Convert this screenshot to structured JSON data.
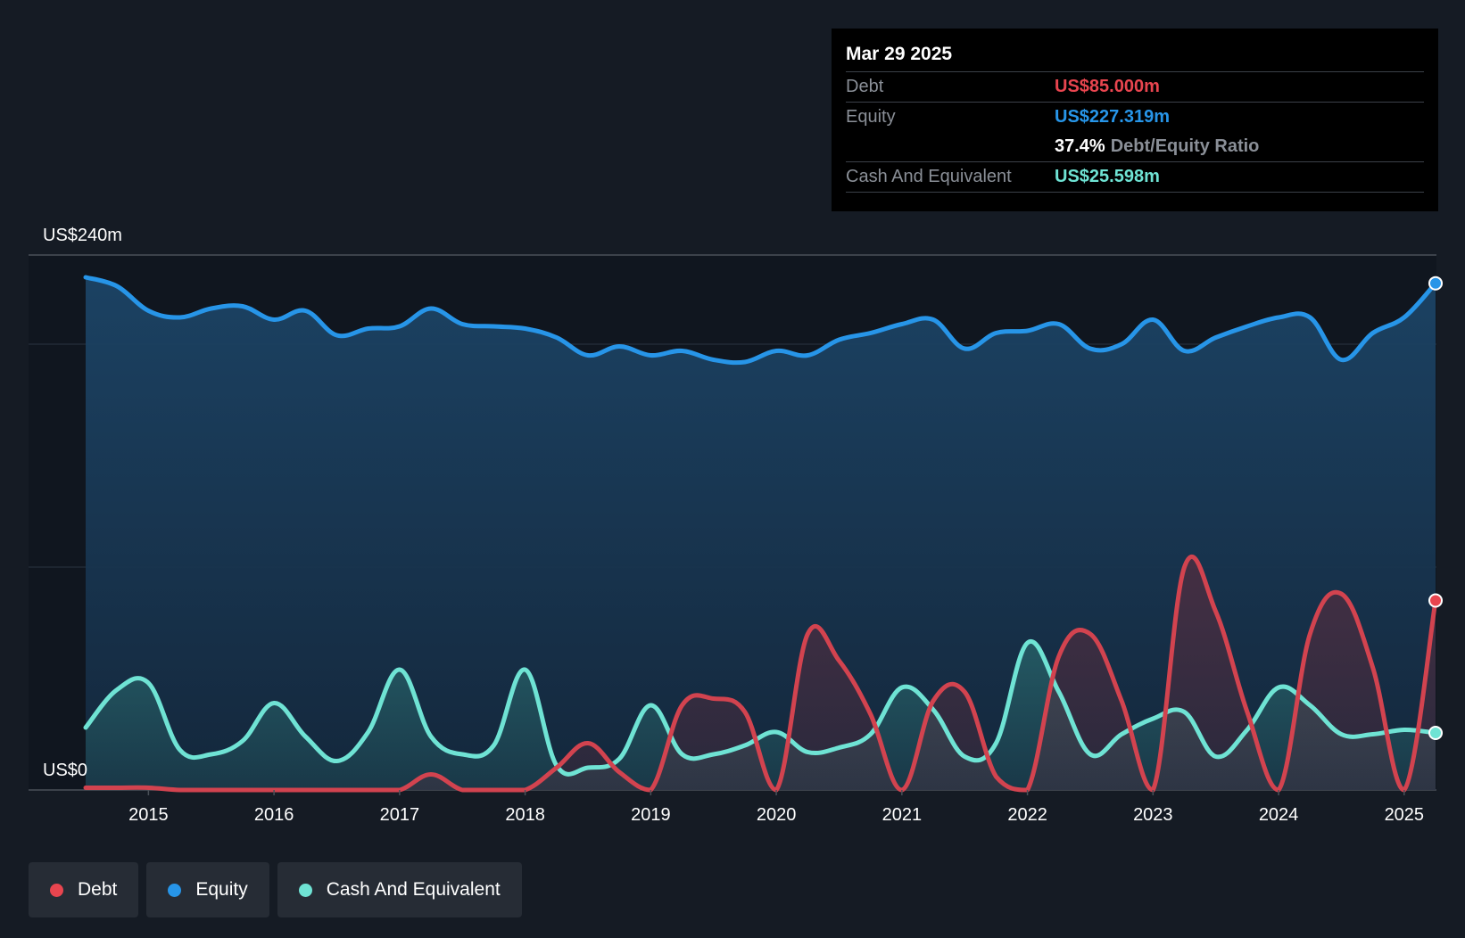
{
  "tooltip": {
    "date": "Mar 29 2025",
    "debt_label": "Debt",
    "debt_value": "US$85.000m",
    "equity_label": "Equity",
    "equity_value": "US$227.319m",
    "ratio_value": "37.4%",
    "ratio_label": "Debt/Equity Ratio",
    "cash_label": "Cash And Equivalent",
    "cash_value": "US$25.598m"
  },
  "legend": [
    {
      "label": "Debt",
      "color": "#e8454f"
    },
    {
      "label": "Equity",
      "color": "#2795e8"
    },
    {
      "label": "Cash And Equivalent",
      "color": "#6fe3d4"
    }
  ],
  "chart_data": {
    "type": "line",
    "ylim": [
      0,
      240
    ],
    "xlim": [
      2014.5,
      2025.25
    ],
    "y_tick_labels": [
      {
        "value": 240,
        "label": "US$240m"
      },
      {
        "value": 0,
        "label": "US$0"
      }
    ],
    "gridlines": [
      240,
      200,
      100,
      0
    ],
    "x_ticks": [
      2015,
      2016,
      2017,
      2018,
      2019,
      2020,
      2021,
      2022,
      2023,
      2024,
      2025
    ],
    "x_tick_labels": [
      "2015",
      "2016",
      "2017",
      "2018",
      "2019",
      "2020",
      "2021",
      "2022",
      "2023",
      "2024",
      "2025"
    ],
    "series": [
      {
        "name": "Equity",
        "color": "#2795e8",
        "points": [
          [
            2014.5,
            230
          ],
          [
            2014.75,
            226
          ],
          [
            2015,
            215
          ],
          [
            2015.25,
            212
          ],
          [
            2015.5,
            216
          ],
          [
            2015.75,
            217
          ],
          [
            2016,
            211
          ],
          [
            2016.25,
            215
          ],
          [
            2016.5,
            204
          ],
          [
            2016.75,
            207
          ],
          [
            2017,
            208
          ],
          [
            2017.25,
            216
          ],
          [
            2017.5,
            209
          ],
          [
            2017.75,
            208
          ],
          [
            2018,
            207
          ],
          [
            2018.25,
            203
          ],
          [
            2018.5,
            195
          ],
          [
            2018.75,
            199
          ],
          [
            2019,
            195
          ],
          [
            2019.25,
            197
          ],
          [
            2019.5,
            193
          ],
          [
            2019.75,
            192
          ],
          [
            2020,
            197
          ],
          [
            2020.25,
            195
          ],
          [
            2020.5,
            202
          ],
          [
            2020.75,
            205
          ],
          [
            2021,
            209
          ],
          [
            2021.25,
            211
          ],
          [
            2021.5,
            198
          ],
          [
            2021.75,
            205
          ],
          [
            2022,
            206
          ],
          [
            2022.25,
            209
          ],
          [
            2022.5,
            198
          ],
          [
            2022.75,
            200
          ],
          [
            2023,
            211
          ],
          [
            2023.25,
            197
          ],
          [
            2023.5,
            203
          ],
          [
            2023.75,
            208
          ],
          [
            2024,
            212
          ],
          [
            2024.25,
            212
          ],
          [
            2024.5,
            193
          ],
          [
            2024.75,
            205
          ],
          [
            2025,
            212
          ],
          [
            2025.25,
            227.319
          ]
        ]
      },
      {
        "name": "Cash And Equivalent",
        "color": "#6fe3d4",
        "points": [
          [
            2014.5,
            28
          ],
          [
            2014.75,
            45
          ],
          [
            2015,
            48
          ],
          [
            2015.25,
            18
          ],
          [
            2015.5,
            16
          ],
          [
            2015.75,
            22
          ],
          [
            2016,
            39
          ],
          [
            2016.25,
            24
          ],
          [
            2016.5,
            13
          ],
          [
            2016.75,
            26
          ],
          [
            2017,
            54
          ],
          [
            2017.25,
            24
          ],
          [
            2017.5,
            16
          ],
          [
            2017.75,
            20
          ],
          [
            2018,
            54
          ],
          [
            2018.25,
            11
          ],
          [
            2018.5,
            10
          ],
          [
            2018.75,
            14
          ],
          [
            2019,
            38
          ],
          [
            2019.25,
            16
          ],
          [
            2019.5,
            16
          ],
          [
            2019.75,
            20
          ],
          [
            2020,
            26
          ],
          [
            2020.25,
            17
          ],
          [
            2020.5,
            19
          ],
          [
            2020.75,
            25
          ],
          [
            2021,
            46
          ],
          [
            2021.25,
            36
          ],
          [
            2021.5,
            15
          ],
          [
            2021.75,
            21
          ],
          [
            2022,
            66
          ],
          [
            2022.25,
            44
          ],
          [
            2022.5,
            16
          ],
          [
            2022.75,
            25
          ],
          [
            2023,
            32
          ],
          [
            2023.25,
            35
          ],
          [
            2023.5,
            15
          ],
          [
            2023.75,
            27
          ],
          [
            2024,
            46
          ],
          [
            2024.25,
            38
          ],
          [
            2024.5,
            25
          ],
          [
            2024.75,
            25
          ],
          [
            2025,
            27
          ],
          [
            2025.25,
            25.598
          ]
        ]
      },
      {
        "name": "Debt",
        "color": "#e8454f",
        "points": [
          [
            2014.5,
            1
          ],
          [
            2014.75,
            1
          ],
          [
            2015,
            1
          ],
          [
            2015.25,
            0
          ],
          [
            2015.5,
            0
          ],
          [
            2015.75,
            0
          ],
          [
            2016,
            0
          ],
          [
            2016.25,
            0
          ],
          [
            2016.5,
            0
          ],
          [
            2016.75,
            0
          ],
          [
            2017,
            0
          ],
          [
            2017.25,
            7
          ],
          [
            2017.5,
            0
          ],
          [
            2017.75,
            0
          ],
          [
            2018,
            0
          ],
          [
            2018.25,
            10
          ],
          [
            2018.5,
            21
          ],
          [
            2018.75,
            8
          ],
          [
            2019,
            0
          ],
          [
            2019.25,
            38
          ],
          [
            2019.5,
            41
          ],
          [
            2019.75,
            35
          ],
          [
            2020,
            0
          ],
          [
            2020.25,
            70
          ],
          [
            2020.5,
            58
          ],
          [
            2020.75,
            34
          ],
          [
            2021,
            0
          ],
          [
            2021.25,
            40
          ],
          [
            2021.5,
            44
          ],
          [
            2021.75,
            6
          ],
          [
            2022,
            0
          ],
          [
            2022.25,
            60
          ],
          [
            2022.5,
            70
          ],
          [
            2022.75,
            40
          ],
          [
            2023,
            0
          ],
          [
            2023.25,
            100
          ],
          [
            2023.5,
            80
          ],
          [
            2023.75,
            35
          ],
          [
            2024,
            0
          ],
          [
            2024.25,
            70
          ],
          [
            2024.5,
            88
          ],
          [
            2024.75,
            55
          ],
          [
            2025,
            0
          ],
          [
            2025.25,
            85
          ]
        ]
      }
    ]
  }
}
